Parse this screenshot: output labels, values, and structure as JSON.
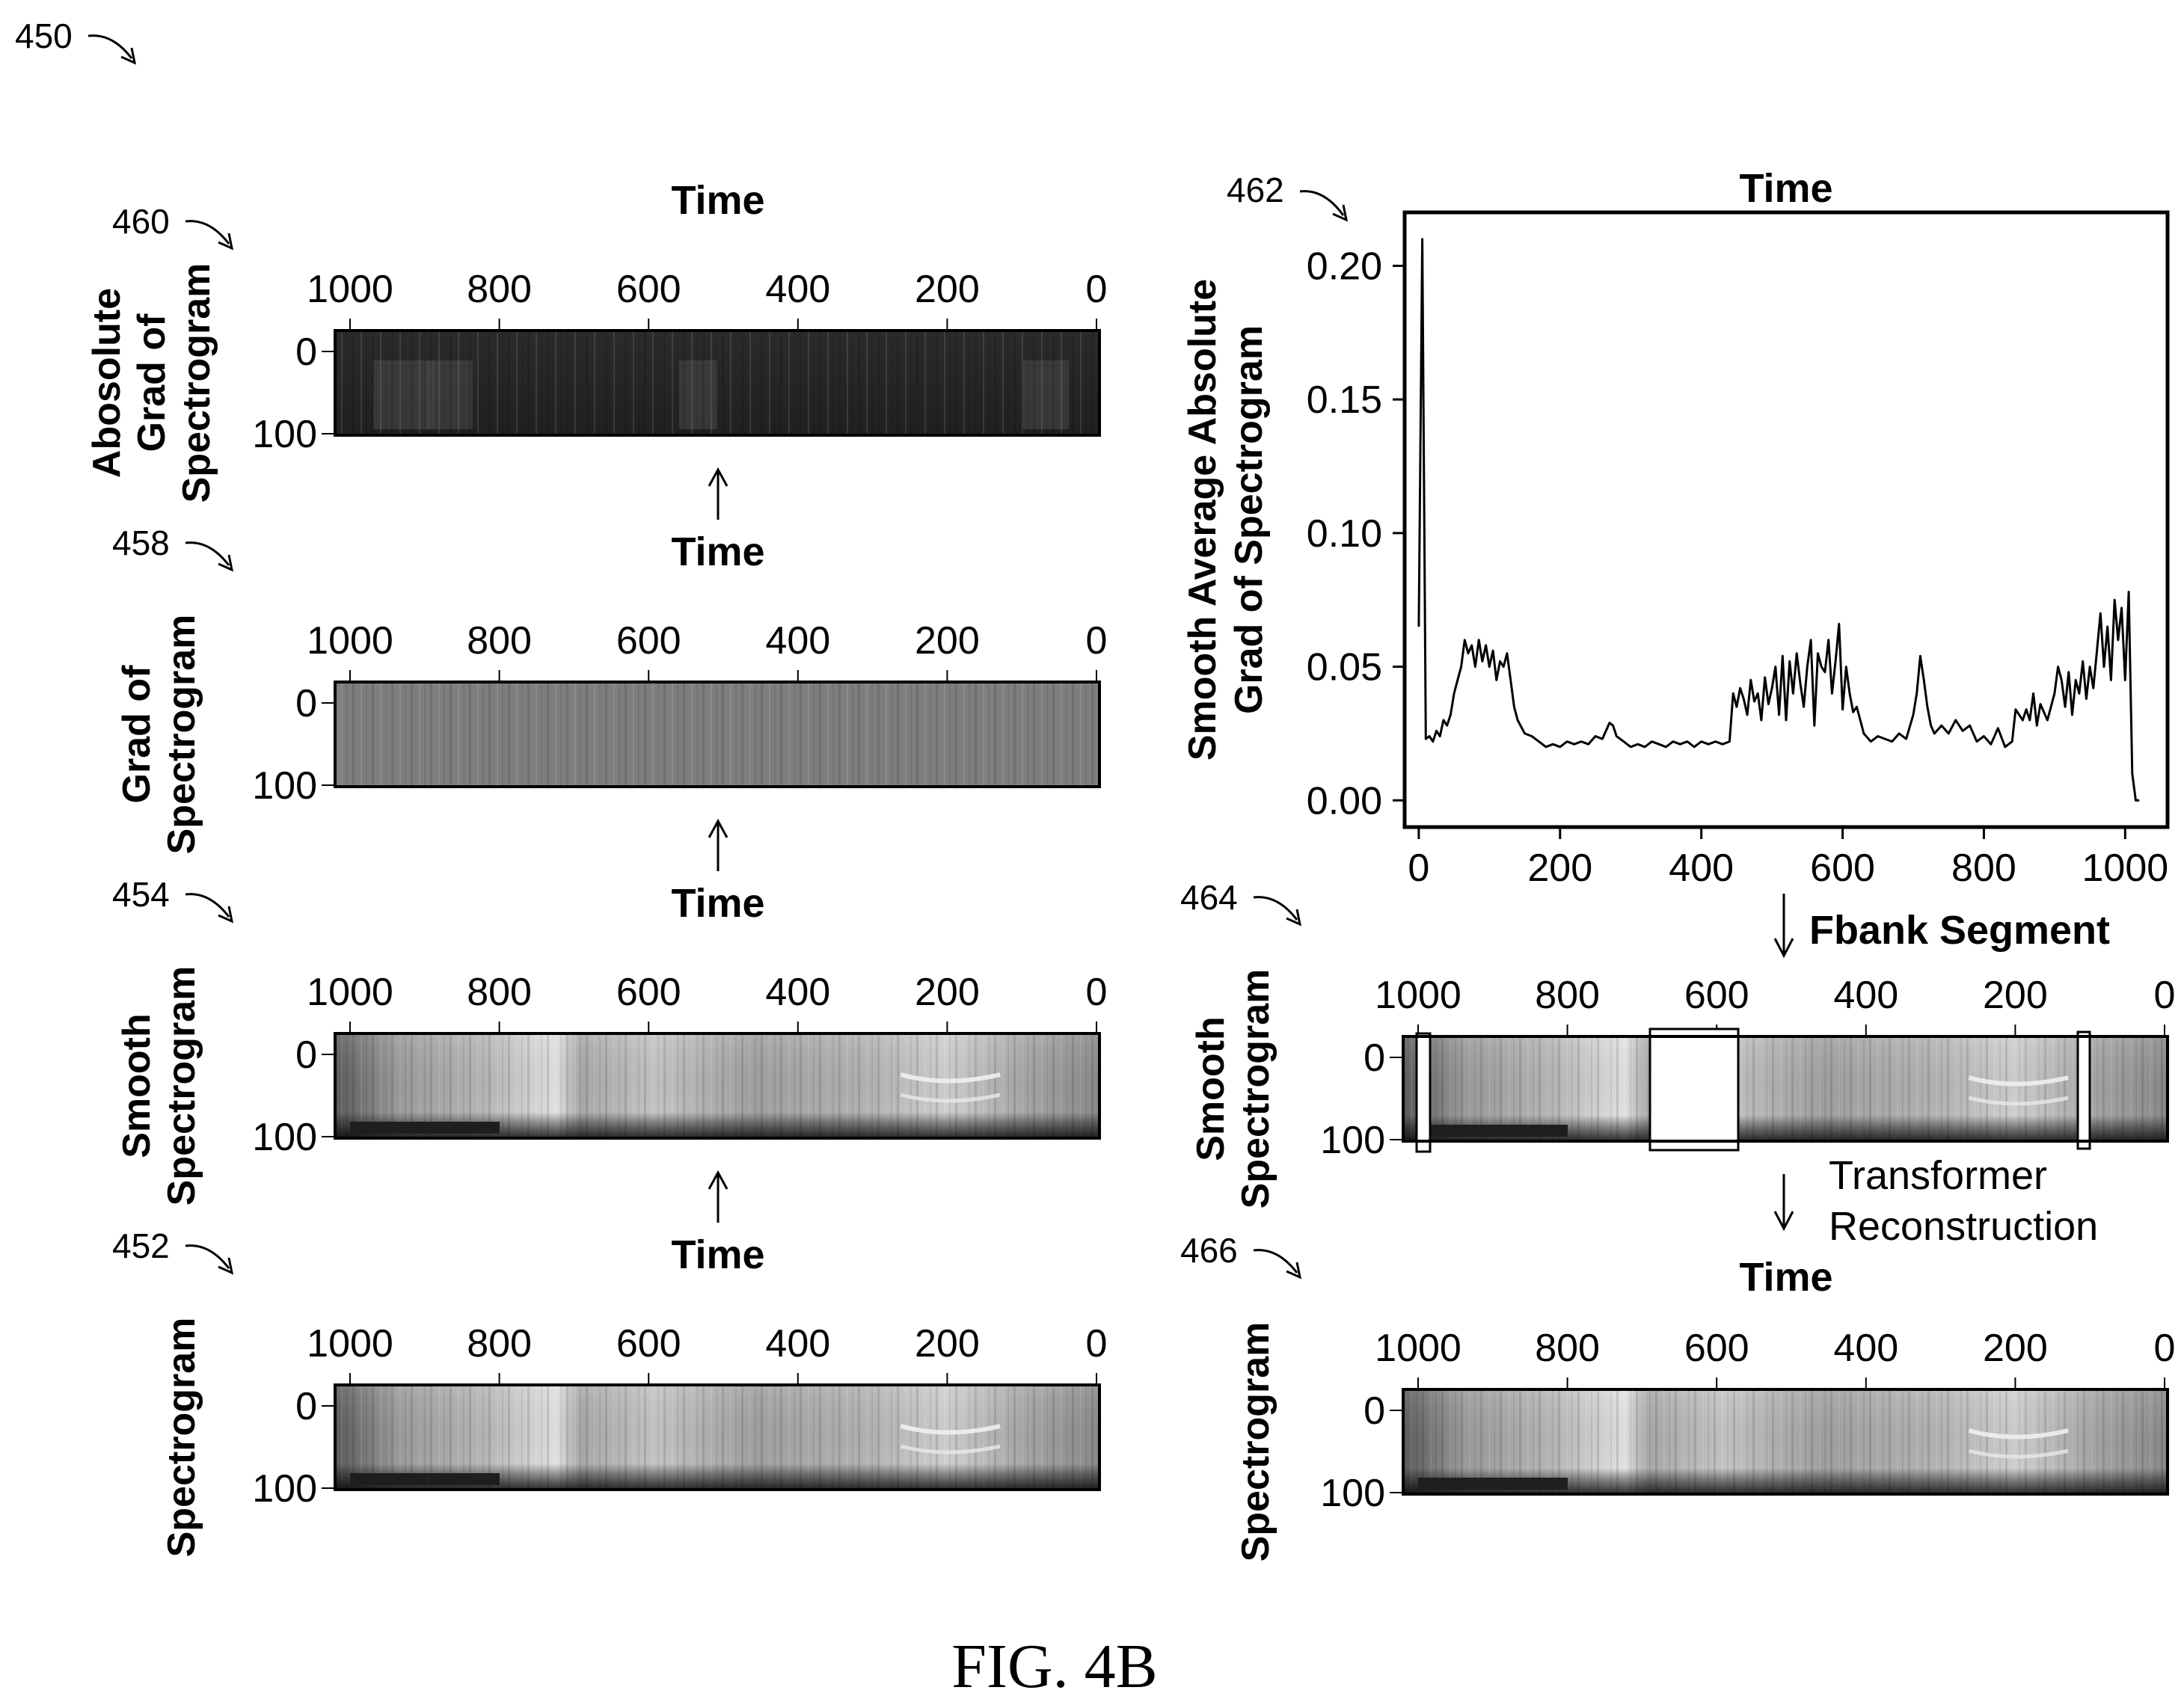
{
  "figure": {
    "ref": "450",
    "caption": "FIG. 4B"
  },
  "axis_common": {
    "time_label": "Time",
    "spec_x_ticks": [
      "1000",
      "800",
      "600",
      "400",
      "200",
      "0"
    ],
    "spec_y_ticks": [
      "0",
      "100"
    ]
  },
  "panels": [
    {
      "id": "p460",
      "ref": "460",
      "ylabel": [
        "Abosolute",
        "Grad of",
        "Spectrogram"
      ],
      "style": "dark",
      "time_label": "Time"
    },
    {
      "id": "p458",
      "ref": "458",
      "ylabel": [
        "Grad of",
        "Spectrogram"
      ],
      "style": "gray",
      "time_label": "Time"
    },
    {
      "id": "p454",
      "ref": "454",
      "ylabel": [
        "Smooth",
        "Spectrogram"
      ],
      "style": "spec",
      "time_label": "Time"
    },
    {
      "id": "p452",
      "ref": "452",
      "ylabel": [
        "Spectrogram"
      ],
      "style": "spec",
      "time_label": "Time"
    },
    {
      "id": "p464",
      "ref": "464",
      "ylabel": [
        "Smooth",
        "Spectrogram"
      ],
      "style": "spec-masked",
      "time_label": "Fbank Segment"
    },
    {
      "id": "p466",
      "ref": "466",
      "ylabel": [
        "Spectrogram"
      ],
      "style": "spec",
      "time_label": "Time"
    }
  ],
  "annotations": {
    "transformer_line1": "Transformer",
    "transformer_line2": "Reconstruction"
  },
  "chart_data": {
    "type": "line",
    "ref": "462",
    "title": "Time",
    "ylabel": [
      "Smooth Average Absolute",
      "Grad of Spectrogram"
    ],
    "xlabel": "",
    "xlim": [
      -20,
      1060
    ],
    "ylim": [
      -0.01,
      0.22
    ],
    "x_ticks": [
      0,
      200,
      400,
      600,
      800,
      1000
    ],
    "y_ticks": [
      0.0,
      0.05,
      0.1,
      0.15,
      0.2
    ],
    "x_tick_labels": [
      "0",
      "200",
      "400",
      "600",
      "800",
      "1000"
    ],
    "y_tick_labels": [
      "0.00",
      "0.05",
      "0.10",
      "0.15",
      "0.20"
    ],
    "grid": false,
    "series": [
      {
        "x": [
          0,
          5,
          10,
          15,
          20,
          25,
          30,
          35,
          40,
          45,
          50,
          55,
          60,
          65,
          70,
          75,
          80,
          85,
          90,
          95,
          100,
          105,
          110,
          115,
          120,
          125,
          130,
          135,
          140,
          150,
          160,
          170,
          180,
          190,
          200,
          210,
          220,
          230,
          240,
          250,
          260,
          270,
          275,
          280,
          290,
          300,
          310,
          320,
          330,
          340,
          350,
          360,
          370,
          380,
          390,
          400,
          410,
          420,
          430,
          440,
          445,
          450,
          455,
          460,
          465,
          470,
          475,
          480,
          485,
          490,
          495,
          500,
          505,
          510,
          515,
          520,
          525,
          530,
          535,
          540,
          545,
          550,
          555,
          560,
          565,
          570,
          575,
          580,
          585,
          590,
          595,
          600,
          605,
          610,
          615,
          620,
          625,
          630,
          640,
          650,
          660,
          670,
          680,
          690,
          700,
          705,
          710,
          715,
          720,
          725,
          730,
          740,
          750,
          760,
          770,
          780,
          790,
          800,
          810,
          820,
          830,
          840,
          845,
          850,
          855,
          860,
          865,
          870,
          875,
          880,
          890,
          900,
          905,
          910,
          915,
          920,
          925,
          930,
          935,
          940,
          945,
          950,
          955,
          960,
          965,
          970,
          975,
          980,
          985,
          990,
          995,
          1000,
          1005,
          1010,
          1015,
          1020
        ],
        "y": [
          0.065,
          0.21,
          0.023,
          0.024,
          0.022,
          0.026,
          0.024,
          0.03,
          0.028,
          0.032,
          0.04,
          0.045,
          0.05,
          0.06,
          0.055,
          0.058,
          0.05,
          0.06,
          0.052,
          0.058,
          0.05,
          0.056,
          0.045,
          0.052,
          0.05,
          0.055,
          0.045,
          0.035,
          0.03,
          0.025,
          0.024,
          0.022,
          0.02,
          0.021,
          0.02,
          0.022,
          0.021,
          0.022,
          0.021,
          0.024,
          0.023,
          0.029,
          0.028,
          0.024,
          0.022,
          0.02,
          0.021,
          0.02,
          0.022,
          0.021,
          0.02,
          0.022,
          0.021,
          0.022,
          0.02,
          0.022,
          0.021,
          0.022,
          0.021,
          0.022,
          0.04,
          0.035,
          0.042,
          0.038,
          0.032,
          0.045,
          0.037,
          0.04,
          0.03,
          0.046,
          0.036,
          0.042,
          0.05,
          0.032,
          0.054,
          0.03,
          0.052,
          0.04,
          0.055,
          0.044,
          0.035,
          0.05,
          0.06,
          0.028,
          0.055,
          0.05,
          0.048,
          0.06,
          0.04,
          0.052,
          0.066,
          0.034,
          0.05,
          0.04,
          0.033,
          0.035,
          0.03,
          0.025,
          0.022,
          0.024,
          0.023,
          0.022,
          0.025,
          0.023,
          0.032,
          0.04,
          0.054,
          0.045,
          0.035,
          0.028,
          0.025,
          0.028,
          0.025,
          0.03,
          0.026,
          0.028,
          0.022,
          0.024,
          0.021,
          0.027,
          0.02,
          0.022,
          0.034,
          0.032,
          0.03,
          0.034,
          0.03,
          0.04,
          0.028,
          0.036,
          0.03,
          0.04,
          0.05,
          0.045,
          0.035,
          0.048,
          0.032,
          0.045,
          0.04,
          0.052,
          0.038,
          0.05,
          0.042,
          0.056,
          0.07,
          0.05,
          0.065,
          0.045,
          0.075,
          0.06,
          0.072,
          0.045,
          0.078,
          0.01,
          0.0,
          0.0
        ]
      }
    ]
  }
}
